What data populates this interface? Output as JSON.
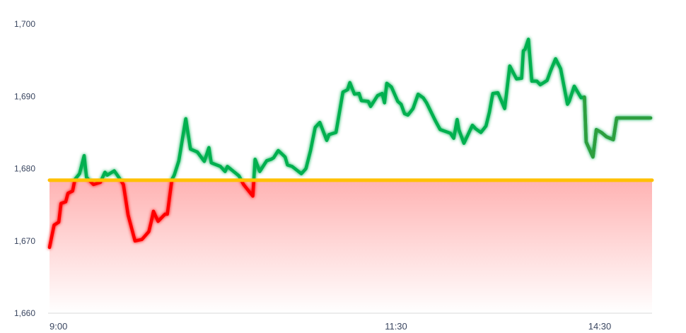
{
  "chart_data": {
    "type": "line",
    "title": "",
    "xlabel": "",
    "ylabel": "",
    "ylim": [
      1660,
      1700
    ],
    "y_ticks": [
      "1,660",
      "1,670",
      "1,680",
      "1,690",
      "1,700"
    ],
    "y_tick_values": [
      1660,
      1670,
      1680,
      1690,
      1700
    ],
    "x_ticks": [
      "9:00",
      "11:30",
      "14:30"
    ],
    "grid": false,
    "legend": "none",
    "reference_line": 1678.4,
    "colors": {
      "above": "#00b050",
      "below": "#ff0000",
      "reference": "#ffc000",
      "fill": "#ffb3b3",
      "end_segment": "#2e9e3e"
    },
    "series": [
      {
        "points": [
          [
            "9:00",
            1669.1
          ],
          [
            "9:02",
            1672.2
          ],
          [
            "9:04",
            1672.6
          ],
          [
            "9:05",
            1675.2
          ],
          [
            "9:07",
            1675.4
          ],
          [
            "9:08",
            1676.6
          ],
          [
            "9:10",
            1676.9
          ],
          [
            "9:11",
            1678.5
          ],
          [
            "9:13",
            1679.3
          ],
          [
            "9:15",
            1681.8
          ],
          [
            "9:16",
            1678.8
          ],
          [
            "9:19",
            1677.8
          ],
          [
            "9:22",
            1678.1
          ],
          [
            "9:24",
            1679.5
          ],
          [
            "9:25",
            1679.1
          ],
          [
            "9:28",
            1679.7
          ],
          [
            "9:30",
            1678.8
          ],
          [
            "9:32",
            1677.8
          ],
          [
            "9:34",
            1673.6
          ],
          [
            "9:37",
            1670.0
          ],
          [
            "9:40",
            1670.2
          ],
          [
            "9:43",
            1671.3
          ],
          [
            "9:44",
            1672.6
          ],
          [
            "9:45",
            1674.1
          ],
          [
            "9:47",
            1672.7
          ],
          [
            "9:50",
            1673.7
          ],
          [
            "9:51",
            1673.7
          ],
          [
            "9:53",
            1678.5
          ],
          [
            "9:54",
            1679.1
          ],
          [
            "9:56",
            1681.1
          ],
          [
            "9:59",
            1686.9
          ],
          [
            "10:01",
            1682.7
          ],
          [
            "10:04",
            1682.3
          ],
          [
            "10:07",
            1681.0
          ],
          [
            "10:09",
            1682.9
          ],
          [
            "10:10",
            1680.8
          ],
          [
            "10:14",
            1680.3
          ],
          [
            "10:16",
            1679.6
          ],
          [
            "10:17",
            1680.3
          ],
          [
            "10:22",
            1679.0
          ],
          [
            "10:24",
            1677.8
          ],
          [
            "10:28",
            1676.2
          ],
          [
            "10:29",
            1681.3
          ],
          [
            "10:31",
            1679.6
          ],
          [
            "10:32",
            1680.1
          ],
          [
            "10:34",
            1681.1
          ],
          [
            "10:36",
            1681.3
          ],
          [
            "10:37",
            1681.5
          ],
          [
            "10:39",
            1682.5
          ],
          [
            "10:42",
            1681.6
          ],
          [
            "10:43",
            1680.5
          ],
          [
            "10:45",
            1680.3
          ],
          [
            "10:47",
            1679.8
          ],
          [
            "10:49",
            1679.3
          ],
          [
            "10:51",
            1680.0
          ],
          [
            "10:53",
            1682.5
          ],
          [
            "10:55",
            1685.7
          ],
          [
            "10:57",
            1686.4
          ],
          [
            "11:00",
            1683.9
          ],
          [
            "11:01",
            1684.7
          ],
          [
            "11:04",
            1685.0
          ],
          [
            "11:07",
            1690.6
          ],
          [
            "11:09",
            1690.9
          ],
          [
            "11:10",
            1691.9
          ],
          [
            "11:12",
            1690.3
          ],
          [
            "11:14",
            1690.4
          ],
          [
            "11:15",
            1689.4
          ],
          [
            "11:18",
            1689.3
          ],
          [
            "11:19",
            1688.6
          ],
          [
            "11:22",
            1690.1
          ],
          [
            "11:24",
            1690.4
          ],
          [
            "11:25",
            1689.1
          ],
          [
            "11:26",
            1691.8
          ],
          [
            "11:28",
            1691.3
          ],
          [
            "12:31",
            1689.3
          ],
          [
            "12:33",
            1688.9
          ],
          [
            "12:35",
            1687.6
          ],
          [
            "12:37",
            1687.4
          ],
          [
            "12:40",
            1688.3
          ],
          [
            "12:43",
            1690.3
          ],
          [
            "12:46",
            1689.8
          ],
          [
            "12:48",
            1689.1
          ],
          [
            "12:53",
            1686.7
          ],
          [
            "12:56",
            1685.4
          ],
          [
            "13:02",
            1684.9
          ],
          [
            "13:04",
            1684.2
          ],
          [
            "13:06",
            1686.8
          ],
          [
            "13:07",
            1685.4
          ],
          [
            "13:10",
            1683.5
          ],
          [
            "13:15",
            1686.0
          ],
          [
            "13:17",
            1685.5
          ],
          [
            "13:20",
            1685.0
          ],
          [
            "13:23",
            1685.9
          ],
          [
            "13:25",
            1687.8
          ],
          [
            "13:27",
            1690.4
          ],
          [
            "13:30",
            1690.5
          ],
          [
            "13:34",
            1688.3
          ],
          [
            "13:37",
            1694.2
          ],
          [
            "13:41",
            1692.4
          ],
          [
            "13:44",
            1692.5
          ],
          [
            "13:45",
            1696.3
          ],
          [
            "13:46",
            1696.5
          ],
          [
            "13:48",
            1697.9
          ],
          [
            "13:50",
            1692.1
          ],
          [
            "13:53",
            1692.1
          ],
          [
            "13:55",
            1691.6
          ],
          [
            "13:59",
            1692.2
          ],
          [
            "14:01",
            1693.5
          ],
          [
            "14:04",
            1695.2
          ],
          [
            "14:07",
            1693.8
          ],
          [
            "14:11",
            1688.9
          ],
          [
            "14:12",
            1689.3
          ],
          [
            "14:15",
            1691.4
          ],
          [
            "14:19",
            1689.8
          ],
          [
            "14:21",
            1689.9
          ],
          [
            "14:22",
            1683.7
          ],
          [
            "14:26",
            1681.6
          ],
          [
            "14:28",
            1685.4
          ],
          [
            "14:31",
            1685.0
          ],
          [
            "14:34",
            1684.4
          ],
          [
            "14:38",
            1684.0
          ],
          [
            "14:40",
            1687.0
          ],
          [
            "15:00",
            1687.0
          ]
        ]
      }
    ]
  }
}
